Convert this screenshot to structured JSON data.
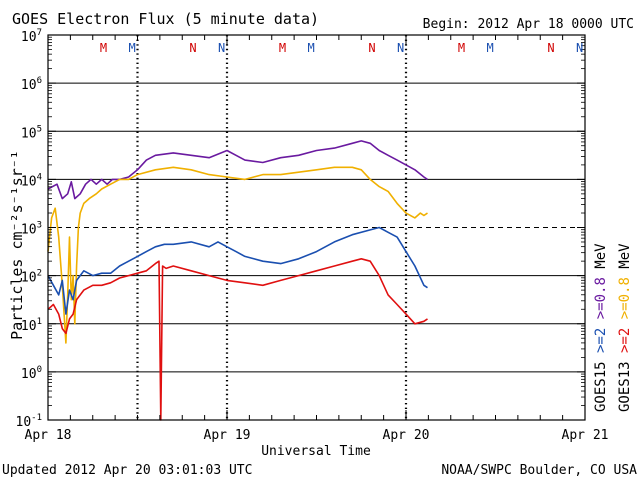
{
  "chart_data": {
    "type": "line",
    "title": "GOES Electron Flux (5 minute data)",
    "begin_label": "Begin: 2012 Apr 18 0000 UTC",
    "xlabel": "Universal Time",
    "ylabel": "Particles cm⁻²s⁻¹sr⁻¹",
    "x_unit": "days since 2012 Apr 18 0000 UTC",
    "xlim": [
      0,
      3
    ],
    "ylim_log10": [
      -1,
      7
    ],
    "x_ticks": [
      {
        "x": 0,
        "label": "Apr 18"
      },
      {
        "x": 1,
        "label": "Apr 19"
      },
      {
        "x": 2,
        "label": "Apr 20"
      },
      {
        "x": 3,
        "label": "Apr 21"
      }
    ],
    "y_ticks": [
      {
        "exp": 7,
        "base": "10",
        "sup": "7"
      },
      {
        "exp": 6,
        "base": "10",
        "sup": "6"
      },
      {
        "exp": 5,
        "base": "10",
        "sup": "5"
      },
      {
        "exp": 4,
        "base": "10",
        "sup": "4"
      },
      {
        "exp": 3,
        "base": "10",
        "sup": "3"
      },
      {
        "exp": 2,
        "base": "10",
        "sup": "2"
      },
      {
        "exp": 1,
        "base": "10",
        "sup": "1"
      },
      {
        "exp": 0,
        "base": "10",
        "sup": "0"
      },
      {
        "exp": -1,
        "base": "10",
        "sup": "-1"
      }
    ],
    "threshold_exp": 3,
    "dotted_x_lines": [
      0.5,
      1,
      2
    ],
    "noon_midnight_marks": [
      {
        "x": 0.31,
        "label": "M",
        "color": "#d00000"
      },
      {
        "x": 0.47,
        "label": "M",
        "color": "#1a4fb0"
      },
      {
        "x": 0.81,
        "label": "N",
        "color": "#d00000"
      },
      {
        "x": 0.97,
        "label": "N",
        "color": "#1a4fb0"
      },
      {
        "x": 1.31,
        "label": "M",
        "color": "#d00000"
      },
      {
        "x": 1.47,
        "label": "M",
        "color": "#1a4fb0"
      },
      {
        "x": 1.81,
        "label": "N",
        "color": "#d00000"
      },
      {
        "x": 1.97,
        "label": "N",
        "color": "#1a4fb0"
      },
      {
        "x": 2.31,
        "label": "M",
        "color": "#d00000"
      },
      {
        "x": 2.47,
        "label": "M",
        "color": "#1a4fb0"
      },
      {
        "x": 2.81,
        "label": "N",
        "color": "#d00000"
      },
      {
        "x": 2.97,
        "label": "N",
        "color": "#1a4fb0"
      }
    ],
    "series": [
      {
        "name": "GOES15 >=0.8 MeV",
        "color": "#6a1aa0",
        "x": [
          0.0,
          0.05,
          0.08,
          0.11,
          0.13,
          0.15,
          0.18,
          0.21,
          0.24,
          0.27,
          0.3,
          0.33,
          0.36,
          0.4,
          0.45,
          0.5,
          0.55,
          0.6,
          0.7,
          0.8,
          0.9,
          1.0,
          1.05,
          1.1,
          1.2,
          1.3,
          1.4,
          1.5,
          1.6,
          1.7,
          1.75,
          1.8,
          1.85,
          1.9,
          1.95,
          2.0,
          2.05,
          2.1,
          2.12
        ],
        "log_values": [
          3.8,
          3.9,
          3.6,
          3.7,
          3.95,
          3.6,
          3.7,
          3.9,
          4.0,
          3.9,
          4.0,
          3.9,
          4.0,
          4.0,
          4.05,
          4.2,
          4.4,
          4.5,
          4.55,
          4.5,
          4.45,
          4.6,
          4.5,
          4.4,
          4.35,
          4.45,
          4.5,
          4.6,
          4.65,
          4.75,
          4.8,
          4.75,
          4.6,
          4.5,
          4.4,
          4.3,
          4.2,
          4.05,
          4.0
        ]
      },
      {
        "name": "GOES13 >=0.8 MeV",
        "color": "#f0b000",
        "x": [
          0.0,
          0.02,
          0.04,
          0.06,
          0.08,
          0.1,
          0.11,
          0.12,
          0.13,
          0.14,
          0.15,
          0.16,
          0.17,
          0.18,
          0.2,
          0.23,
          0.27,
          0.3,
          0.35,
          0.4,
          0.45,
          0.5,
          0.6,
          0.7,
          0.8,
          0.9,
          1.0,
          1.1,
          1.2,
          1.3,
          1.4,
          1.5,
          1.6,
          1.7,
          1.75,
          1.8,
          1.85,
          1.9,
          1.95,
          2.0,
          2.05,
          2.08,
          2.1,
          2.12
        ],
        "log_values": [
          2.5,
          3.2,
          3.4,
          2.8,
          1.8,
          0.6,
          1.6,
          2.8,
          1.5,
          2.0,
          1.0,
          2.2,
          3.0,
          3.3,
          3.5,
          3.6,
          3.7,
          3.8,
          3.9,
          4.0,
          4.0,
          4.1,
          4.2,
          4.25,
          4.2,
          4.1,
          4.05,
          4.0,
          4.1,
          4.1,
          4.15,
          4.2,
          4.25,
          4.25,
          4.2,
          4.0,
          3.85,
          3.75,
          3.5,
          3.3,
          3.2,
          3.3,
          3.25,
          3.3
        ]
      },
      {
        "name": "GOES15 >=2 MeV",
        "color": "#1a4fb0",
        "x": [
          0.0,
          0.03,
          0.06,
          0.08,
          0.1,
          0.12,
          0.14,
          0.16,
          0.18,
          0.2,
          0.25,
          0.3,
          0.35,
          0.4,
          0.45,
          0.5,
          0.55,
          0.6,
          0.65,
          0.7,
          0.8,
          0.9,
          0.95,
          1.0,
          1.05,
          1.1,
          1.2,
          1.3,
          1.4,
          1.5,
          1.6,
          1.7,
          1.8,
          1.85,
          1.9,
          1.95,
          2.0,
          2.05,
          2.1,
          2.12
        ],
        "log_values": [
          2.0,
          1.8,
          1.6,
          1.9,
          1.2,
          1.7,
          1.5,
          1.9,
          2.0,
          2.1,
          2.0,
          2.05,
          2.05,
          2.2,
          2.3,
          2.4,
          2.5,
          2.6,
          2.65,
          2.65,
          2.7,
          2.6,
          2.7,
          2.6,
          2.5,
          2.4,
          2.3,
          2.25,
          2.35,
          2.5,
          2.7,
          2.85,
          2.95,
          3.0,
          2.9,
          2.8,
          2.5,
          2.2,
          1.8,
          1.75
        ]
      },
      {
        "name": "GOES13 >=2 MeV",
        "color": "#e01010",
        "x": [
          0.0,
          0.03,
          0.06,
          0.08,
          0.1,
          0.12,
          0.14,
          0.16,
          0.18,
          0.2,
          0.25,
          0.3,
          0.35,
          0.4,
          0.45,
          0.5,
          0.55,
          0.6,
          0.62,
          0.63,
          0.64,
          0.66,
          0.7,
          0.8,
          0.9,
          0.95,
          1.0,
          1.1,
          1.2,
          1.3,
          1.4,
          1.5,
          1.6,
          1.7,
          1.75,
          1.8,
          1.85,
          1.9,
          1.95,
          2.0,
          2.05,
          2.1,
          2.12
        ],
        "log_values": [
          1.3,
          1.4,
          1.2,
          0.9,
          0.8,
          1.1,
          1.2,
          1.5,
          1.6,
          1.7,
          1.8,
          1.8,
          1.85,
          1.95,
          2.0,
          2.05,
          2.1,
          2.25,
          2.3,
          -1.0,
          2.2,
          2.15,
          2.2,
          2.1,
          2.0,
          1.95,
          1.9,
          1.85,
          1.8,
          1.9,
          2.0,
          2.1,
          2.2,
          2.3,
          2.35,
          2.3,
          2.0,
          1.6,
          1.4,
          1.2,
          1.0,
          1.05,
          1.1
        ]
      }
    ],
    "right_legend": {
      "col1": [
        {
          "text": "GOES15",
          "color": "#000000"
        },
        {
          "text": ">=2",
          "color": "#1a4fb0"
        },
        {
          "text": ">=0.8",
          "color": "#6a1aa0"
        },
        {
          "text": "MeV",
          "color": "#000000"
        }
      ],
      "col2": [
        {
          "text": "GOES13",
          "color": "#000000"
        },
        {
          "text": ">=2",
          "color": "#e01010"
        },
        {
          "text": ">=0.8",
          "color": "#f0b000"
        },
        {
          "text": "MeV",
          "color": "#000000"
        }
      ]
    }
  },
  "footer": {
    "updated": "Updated 2012 Apr 20 03:01:03 UTC",
    "source": "NOAA/SWPC Boulder, CO USA"
  }
}
